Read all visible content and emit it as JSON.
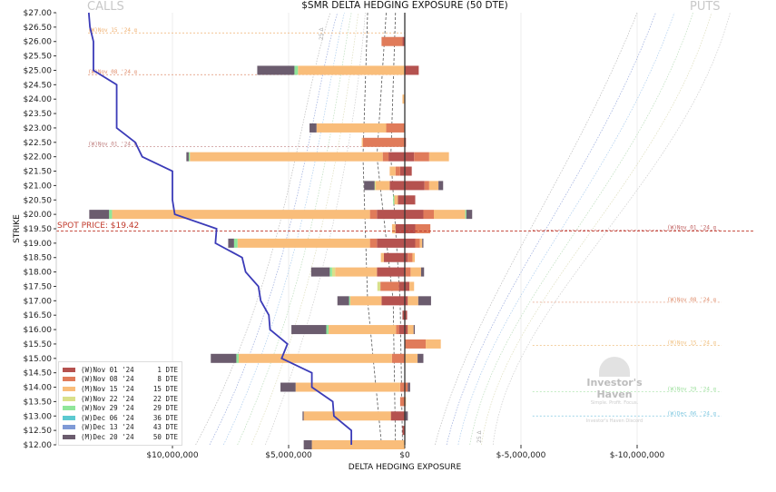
{
  "chart_data": {
    "type": "bar",
    "orientation": "horizontal-stacked",
    "title": "$SMR DELTA HEDGING EXPOSURE (50 DTE)",
    "xlabel": "DELTA HEDGING EXPOSURE",
    "ylabel": "STRIKE",
    "side_labels": {
      "left": "CALLS",
      "right": "PUTS"
    },
    "x_units": "USD millions",
    "xlim": [
      15,
      -15
    ],
    "ylim": [
      12,
      27
    ],
    "x_reversed": true,
    "x_ticks": [
      {
        "value": 10,
        "label": "$10,000,000"
      },
      {
        "value": 5,
        "label": "$5,000,000"
      },
      {
        "value": 0,
        "label": "$0"
      },
      {
        "value": -5,
        "label": "$-5,000,000"
      },
      {
        "value": -10,
        "label": "$-10,000,000"
      }
    ],
    "y_tick_labels": [
      "$27.00",
      "$26.50",
      "$26.00",
      "$25.50",
      "$25.00",
      "$24.50",
      "$24.00",
      "$23.50",
      "$23.00",
      "$22.50",
      "$22.00",
      "$21.50",
      "$21.00",
      "$20.50",
      "$20.00",
      "$19.50",
      "$19.00",
      "$18.50",
      "$18.00",
      "$17.50",
      "$17.00",
      "$16.50",
      "$16.00",
      "$15.50",
      "$15.00",
      "$14.50",
      "$14.00",
      "$13.50",
      "$13.00",
      "$12.50",
      "$12.00"
    ],
    "spot": {
      "value": 19.42,
      "label": "SPOT PRICE: $19.42",
      "color": "#c0392b"
    },
    "legend_position": "bottom-left",
    "expiries": [
      {
        "name": "(W)Nov 01 '24",
        "dte": "1 DTE",
        "color": "#b5524f"
      },
      {
        "name": "(W)Nov 08 '24",
        "dte": "8 DTE",
        "color": "#e07b5a"
      },
      {
        "name": "(M)Nov 15 '24",
        "dte": "15 DTE",
        "color": "#f9bd7a"
      },
      {
        "name": "(W)Nov 22 '24",
        "dte": "22 DTE",
        "color": "#d9e08a"
      },
      {
        "name": "(W)Nov 29 '24",
        "dte": "29 DTE",
        "color": "#8fe69a"
      },
      {
        "name": "(W)Dec 06 '24",
        "dte": "36 DTE",
        "color": "#5cc9d0"
      },
      {
        "name": "(W)Dec 13 '24",
        "dte": "43 DTE",
        "color": "#7f9ad6"
      },
      {
        "name": "(M)Dec 20 '24",
        "dte": "50 DTE",
        "color": "#6b5c6e"
      }
    ],
    "bars": [
      {
        "strike": 26.0,
        "calls": [
          0.1,
          0.9,
          0,
          0,
          0,
          0,
          0,
          0
        ],
        "puts": [
          0,
          0,
          0,
          0,
          0,
          0,
          0,
          0
        ]
      },
      {
        "strike": 25.0,
        "calls": [
          0,
          0,
          4.6,
          0,
          0.15,
          0,
          0,
          1.6
        ],
        "puts": [
          0.6,
          0,
          0,
          0,
          0,
          0,
          0,
          0
        ]
      },
      {
        "strike": 24.0,
        "calls": [
          0,
          0,
          0.1,
          0,
          0,
          0,
          0,
          0
        ],
        "puts": [
          0,
          0,
          0,
          0,
          0,
          0,
          0,
          0
        ]
      },
      {
        "strike": 23.0,
        "calls": [
          0,
          0.8,
          3.0,
          0,
          0,
          0,
          0,
          0.3
        ],
        "puts": [
          0,
          0,
          0,
          0,
          0,
          0,
          0,
          0
        ]
      },
      {
        "strike": 22.5,
        "calls": [
          0,
          1.8,
          0.05,
          0,
          0,
          0,
          0,
          0
        ],
        "puts": [
          0.05,
          0,
          0,
          0,
          0,
          0,
          0,
          0
        ]
      },
      {
        "strike": 22.0,
        "calls": [
          0.7,
          0.25,
          8.3,
          0,
          0.05,
          0,
          0,
          0.1
        ],
        "puts": [
          0.4,
          0.65,
          0.85,
          0,
          0,
          0,
          0,
          0
        ]
      },
      {
        "strike": 21.5,
        "calls": [
          0.2,
          0.2,
          0.25,
          0,
          0,
          0,
          0,
          0
        ],
        "puts": [
          0.3,
          0,
          0,
          0,
          0,
          0,
          0,
          0
        ]
      },
      {
        "strike": 21.0,
        "calls": [
          0.65,
          0,
          0.6,
          0.05,
          0,
          0,
          0,
          0.45
        ],
        "puts": [
          0.85,
          0.2,
          0.4,
          0,
          0,
          0,
          0,
          0.2
        ]
      },
      {
        "strike": 20.5,
        "calls": [
          0.3,
          0,
          0.15,
          0,
          0.05,
          0,
          0,
          0
        ],
        "puts": [
          0.45,
          0,
          0,
          0,
          0,
          0,
          0,
          0
        ]
      },
      {
        "strike": 20.0,
        "calls": [
          1.2,
          0.3,
          11.1,
          0,
          0.13,
          0,
          0,
          0.85
        ],
        "puts": [
          0.8,
          0.45,
          1.35,
          0,
          0.05,
          0,
          0,
          0.25
        ]
      },
      {
        "strike": 19.5,
        "calls": [
          0.4,
          0,
          0.15,
          0,
          0,
          0,
          0,
          0
        ],
        "puts": [
          0.45,
          0.65,
          0,
          0,
          0,
          0,
          0,
          0
        ]
      },
      {
        "strike": 19.0,
        "calls": [
          1.2,
          0.3,
          5.7,
          0,
          0.15,
          0,
          0,
          0.25
        ],
        "puts": [
          0.45,
          0.2,
          0.1,
          0,
          0,
          0,
          0,
          0.05
        ]
      },
      {
        "strike": 18.5,
        "calls": [
          0.9,
          0,
          0.13,
          0,
          0,
          0,
          0,
          0
        ],
        "puts": [
          0.13,
          0.2,
          0.1,
          0,
          0,
          0,
          0,
          0
        ]
      },
      {
        "strike": 18.0,
        "calls": [
          1.2,
          0,
          1.8,
          0.13,
          0.1,
          0,
          0,
          0.8
        ],
        "puts": [
          0,
          0.25,
          0.45,
          0,
          0,
          0,
          0,
          0.13
        ]
      },
      {
        "strike": 17.5,
        "calls": [
          0.25,
          0.8,
          0,
          0.13,
          0,
          0,
          0,
          0
        ],
        "puts": [
          0.2,
          0,
          0.2,
          0,
          0,
          0,
          0,
          0
        ]
      },
      {
        "strike": 17.0,
        "calls": [
          1.0,
          0,
          1.35,
          0,
          0.05,
          0,
          0,
          0.5
        ],
        "puts": [
          0.13,
          0,
          0.45,
          0,
          0,
          0,
          0,
          0.55
        ]
      },
      {
        "strike": 16.5,
        "calls": [
          0.1,
          0,
          0,
          0,
          0,
          0,
          0,
          0
        ],
        "puts": [
          0.1,
          0,
          0,
          0,
          0,
          0,
          0,
          0
        ]
      },
      {
        "strike": 16.0,
        "calls": [
          0.25,
          0.13,
          2.9,
          0,
          0.1,
          0,
          0,
          1.5
        ],
        "puts": [
          0.13,
          0,
          0.25,
          0,
          0,
          0,
          0,
          0.05
        ]
      },
      {
        "strike": 15.5,
        "calls": [
          0,
          0,
          0,
          0,
          0,
          0,
          0,
          0
        ],
        "puts": [
          0,
          0.9,
          0.65,
          0,
          0,
          0,
          0,
          0
        ]
      },
      {
        "strike": 15.0,
        "calls": [
          0,
          0.55,
          6.6,
          0,
          0.1,
          0,
          0,
          1.1
        ],
        "puts": [
          0,
          0,
          0.55,
          0,
          0,
          0,
          0,
          0.25
        ]
      },
      {
        "strike": 14.0,
        "calls": [
          0,
          0.2,
          4.5,
          0,
          0,
          0,
          0,
          0.65
        ],
        "puts": [
          0,
          0.13,
          0,
          0,
          0,
          0,
          0,
          0.1
        ]
      },
      {
        "strike": 13.5,
        "calls": [
          0,
          0.2,
          0,
          0,
          0,
          0,
          0,
          0
        ],
        "puts": [
          0,
          0,
          0.05,
          0,
          0,
          0,
          0,
          0
        ]
      },
      {
        "strike": 13.0,
        "calls": [
          0.6,
          0,
          3.75,
          0,
          0,
          0,
          0,
          0.05
        ],
        "puts": [
          0,
          0,
          0,
          0,
          0,
          0,
          0,
          0.13
        ]
      },
      {
        "strike": 12.5,
        "calls": [
          0.1,
          0,
          0,
          0,
          0,
          0,
          0,
          0
        ],
        "puts": [
          0,
          0,
          0,
          0,
          0,
          0,
          0,
          0
        ]
      },
      {
        "strike": 12.0,
        "calls": [
          0,
          0,
          4.0,
          0,
          0,
          0,
          0,
          0.35
        ],
        "puts": [
          0,
          0,
          0,
          0,
          0,
          0,
          0,
          0
        ]
      }
    ],
    "cumulative_line": {
      "color": "#3b3bb8",
      "points": [
        [
          13.6,
          27
        ],
        [
          13.55,
          26.5
        ],
        [
          13.4,
          26
        ],
        [
          13.4,
          25.5
        ],
        [
          13.4,
          25
        ],
        [
          12.4,
          24.5
        ],
        [
          12.4,
          24
        ],
        [
          12.4,
          23.5
        ],
        [
          12.4,
          23
        ],
        [
          11.6,
          22.5
        ],
        [
          11.3,
          22
        ],
        [
          10.0,
          21.5
        ],
        [
          10.0,
          21
        ],
        [
          10.0,
          20.5
        ],
        [
          9.9,
          20
        ],
        [
          8.1,
          19.5
        ],
        [
          8.15,
          19
        ],
        [
          7.0,
          18.5
        ],
        [
          6.85,
          18
        ],
        [
          6.3,
          17.5
        ],
        [
          6.2,
          17
        ],
        [
          5.85,
          16.5
        ],
        [
          5.8,
          16
        ],
        [
          5.05,
          15.5
        ],
        [
          5.3,
          15
        ],
        [
          4.0,
          14.5
        ],
        [
          4.0,
          14
        ],
        [
          3.1,
          13.5
        ],
        [
          3.05,
          13
        ],
        [
          2.3,
          12.5
        ],
        [
          2.3,
          12
        ]
      ]
    },
    "expiry_markers": [
      {
        "label": "(W)Nov 15 '24 α",
        "strike": 26.3,
        "side": "left",
        "color": "#f0b070"
      },
      {
        "label": "(W)Nov 08 '24 α",
        "strike": 24.85,
        "side": "left",
        "color": "#e09070"
      },
      {
        "label": "(W)Nov 01 '24 α",
        "strike": 22.35,
        "side": "left",
        "color": "#c08080"
      },
      {
        "label": "(W)Nov 01 '24 α",
        "strike": 19.45,
        "side": "right",
        "color": "#c06060"
      },
      {
        "label": "(W)Nov 08 '24 α",
        "strike": 16.95,
        "side": "right",
        "color": "#e09070"
      },
      {
        "label": "(M)Nov 15 '24 α",
        "strike": 15.45,
        "side": "right",
        "color": "#f0c080"
      },
      {
        "label": "(W)Nov 29 '24 α",
        "strike": 13.85,
        "side": "right",
        "color": "#a0e0a0"
      },
      {
        "label": "(W)Dec 06 '24 α",
        "strike": 13.0,
        "side": "right",
        "color": "#80c8e0"
      }
    ],
    "delta_labels": [
      "25 Δ",
      "25 Δ"
    ]
  },
  "watermark": {
    "name": "Investor's Haven",
    "tagline": "Simple. Profit. Focus.",
    "footer": "Investor's Haven Discord"
  }
}
